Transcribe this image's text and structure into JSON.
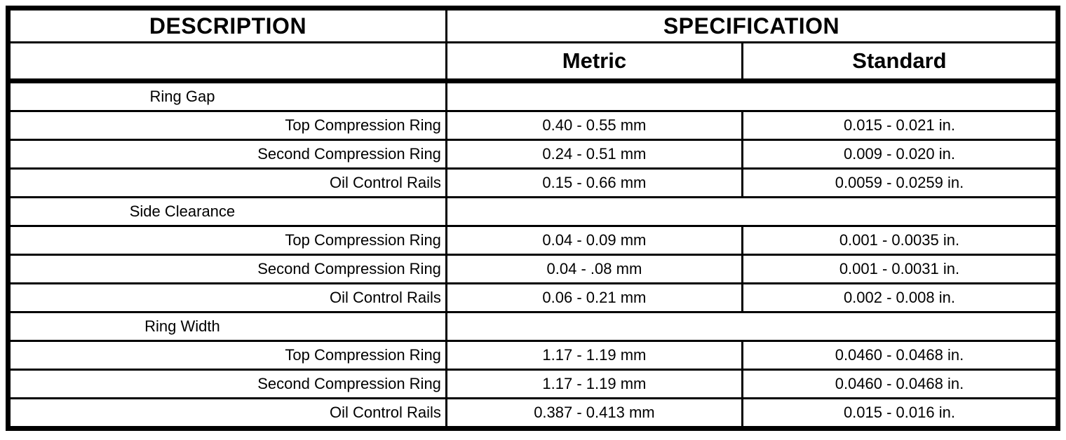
{
  "colors": {
    "border": "#000000",
    "background": "#ffffff",
    "text": "#000000"
  },
  "table": {
    "columns": {
      "description_label": "DESCRIPTION",
      "specification_label": "SPECIFICATION",
      "metric_label": "Metric",
      "standard_label": "Standard"
    },
    "rows": [
      {
        "type": "section",
        "description": "Ring Gap",
        "metric": "",
        "standard": ""
      },
      {
        "type": "data",
        "description": "Top Compression Ring",
        "metric": "0.40 - 0.55 mm",
        "standard": "0.015 - 0.021 in."
      },
      {
        "type": "data",
        "description": "Second Compression Ring",
        "metric": "0.24 - 0.51 mm",
        "standard": "0.009 - 0.020 in."
      },
      {
        "type": "data",
        "description": "Oil Control Rails",
        "metric": "0.15 - 0.66 mm",
        "standard": "0.0059 - 0.0259 in."
      },
      {
        "type": "section",
        "description": "Side Clearance",
        "metric": "",
        "standard": ""
      },
      {
        "type": "data",
        "description": "Top Compression Ring",
        "metric": "0.04 - 0.09 mm",
        "standard": "0.001 - 0.0035 in."
      },
      {
        "type": "data",
        "description": "Second Compression Ring",
        "metric": "0.04 - .08 mm",
        "standard": "0.001 - 0.0031 in."
      },
      {
        "type": "data",
        "description": "Oil Control Rails",
        "metric": "0.06 - 0.21 mm",
        "standard": "0.002 - 0.008 in."
      },
      {
        "type": "section",
        "description": "Ring Width",
        "metric": "",
        "standard": ""
      },
      {
        "type": "data",
        "description": "Top Compression Ring",
        "metric": "1.17 - 1.19 mm",
        "standard": "0.0460 - 0.0468 in."
      },
      {
        "type": "data",
        "description": "Second Compression Ring",
        "metric": "1.17 - 1.19 mm",
        "standard": "0.0460 - 0.0468 in."
      },
      {
        "type": "data",
        "description": "Oil Control Rails",
        "metric": "0.387 - 0.413 mm",
        "standard": "0.015 - 0.016 in."
      }
    ]
  }
}
